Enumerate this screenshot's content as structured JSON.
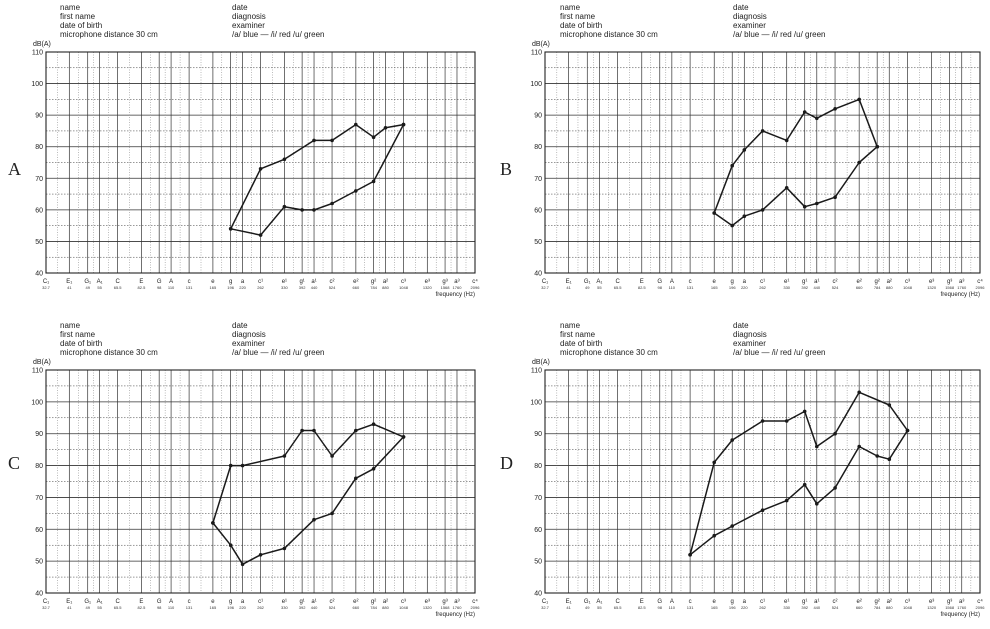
{
  "header_labels": {
    "left": [
      "name",
      "first name",
      "date of birth",
      "microphone  distance  30 cm"
    ],
    "right": [
      "date",
      "diagnosis",
      "examiner",
      "/a/ blue — /i/ red     /u/ green"
    ]
  },
  "y_axis_label": "dB(A)",
  "x_axis_title": "frequency (Hz)",
  "y_ticks": [
    40,
    50,
    60,
    70,
    80,
    90,
    100,
    110
  ],
  "x_axis": {
    "notes": [
      "C₁",
      "E₁",
      "G₁",
      "A₁",
      "C",
      "E",
      "G",
      "A",
      "c",
      "e",
      "g",
      "a",
      "c¹",
      "e¹",
      "g¹",
      "a¹",
      "c²",
      "e²",
      "g²",
      "a²",
      "c³",
      "e³",
      "g³",
      "a³",
      "c⁴"
    ],
    "freqs": [
      "32.7",
      "41",
      "49",
      "55",
      "65.5",
      "82.5",
      "98",
      "110",
      "131",
      "165",
      "196",
      "220",
      "262",
      "330",
      "392",
      "440",
      "524",
      "660",
      "784",
      "880",
      "1048",
      "1320",
      "1568",
      "1760",
      "2096"
    ]
  },
  "chart_data": [
    {
      "panel": "A",
      "type": "line",
      "x_unit": "Hz",
      "y_unit": "dB(A)",
      "ylim": [
        40,
        110
      ],
      "xscale": "log2",
      "upper_contour": [
        [
          196,
          54
        ],
        [
          262,
          73
        ],
        [
          330,
          76
        ],
        [
          440,
          82
        ],
        [
          524,
          82
        ],
        [
          660,
          87
        ],
        [
          784,
          83
        ],
        [
          880,
          86
        ],
        [
          1048,
          87
        ]
      ],
      "lower_contour": [
        [
          196,
          54
        ],
        [
          262,
          52
        ],
        [
          330,
          61
        ],
        [
          392,
          60
        ],
        [
          440,
          60
        ],
        [
          524,
          62
        ],
        [
          660,
          66
        ],
        [
          784,
          69
        ],
        [
          1048,
          87
        ]
      ]
    },
    {
      "panel": "B",
      "type": "line",
      "x_unit": "Hz",
      "y_unit": "dB(A)",
      "ylim": [
        40,
        110
      ],
      "xscale": "log2",
      "upper_contour": [
        [
          165,
          59
        ],
        [
          196,
          74
        ],
        [
          220,
          79
        ],
        [
          262,
          85
        ],
        [
          330,
          82
        ],
        [
          392,
          91
        ],
        [
          440,
          89
        ],
        [
          524,
          92
        ],
        [
          660,
          95
        ],
        [
          784,
          80
        ]
      ],
      "lower_contour": [
        [
          165,
          59
        ],
        [
          196,
          55
        ],
        [
          220,
          58
        ],
        [
          262,
          60
        ],
        [
          330,
          67
        ],
        [
          392,
          61
        ],
        [
          440,
          62
        ],
        [
          524,
          64
        ],
        [
          660,
          75
        ],
        [
          784,
          80
        ]
      ]
    },
    {
      "panel": "C",
      "type": "line",
      "x_unit": "Hz",
      "y_unit": "dB(A)",
      "ylim": [
        40,
        110
      ],
      "xscale": "log2",
      "upper_contour": [
        [
          165,
          62
        ],
        [
          196,
          80
        ],
        [
          220,
          80
        ],
        [
          330,
          83
        ],
        [
          392,
          91
        ],
        [
          440,
          91
        ],
        [
          524,
          83
        ],
        [
          660,
          91
        ],
        [
          784,
          93
        ],
        [
          1048,
          89
        ]
      ],
      "lower_contour": [
        [
          165,
          62
        ],
        [
          196,
          55
        ],
        [
          220,
          49
        ],
        [
          262,
          52
        ],
        [
          330,
          54
        ],
        [
          440,
          63
        ],
        [
          524,
          65
        ],
        [
          660,
          76
        ],
        [
          784,
          79
        ],
        [
          1048,
          89
        ]
      ]
    },
    {
      "panel": "D",
      "type": "line",
      "x_unit": "Hz",
      "y_unit": "dB(A)",
      "ylim": [
        40,
        110
      ],
      "xscale": "log2",
      "upper_contour": [
        [
          131,
          52
        ],
        [
          165,
          81
        ],
        [
          196,
          88
        ],
        [
          262,
          94
        ],
        [
          330,
          94
        ],
        [
          392,
          97
        ],
        [
          440,
          86
        ],
        [
          524,
          90
        ],
        [
          660,
          103
        ],
        [
          880,
          99
        ],
        [
          1048,
          91
        ]
      ],
      "lower_contour": [
        [
          131,
          52
        ],
        [
          165,
          58
        ],
        [
          196,
          61
        ],
        [
          262,
          66
        ],
        [
          330,
          69
        ],
        [
          392,
          74
        ],
        [
          440,
          68
        ],
        [
          524,
          73
        ],
        [
          660,
          86
        ],
        [
          784,
          83
        ],
        [
          880,
          82
        ],
        [
          1048,
          91
        ]
      ]
    }
  ]
}
